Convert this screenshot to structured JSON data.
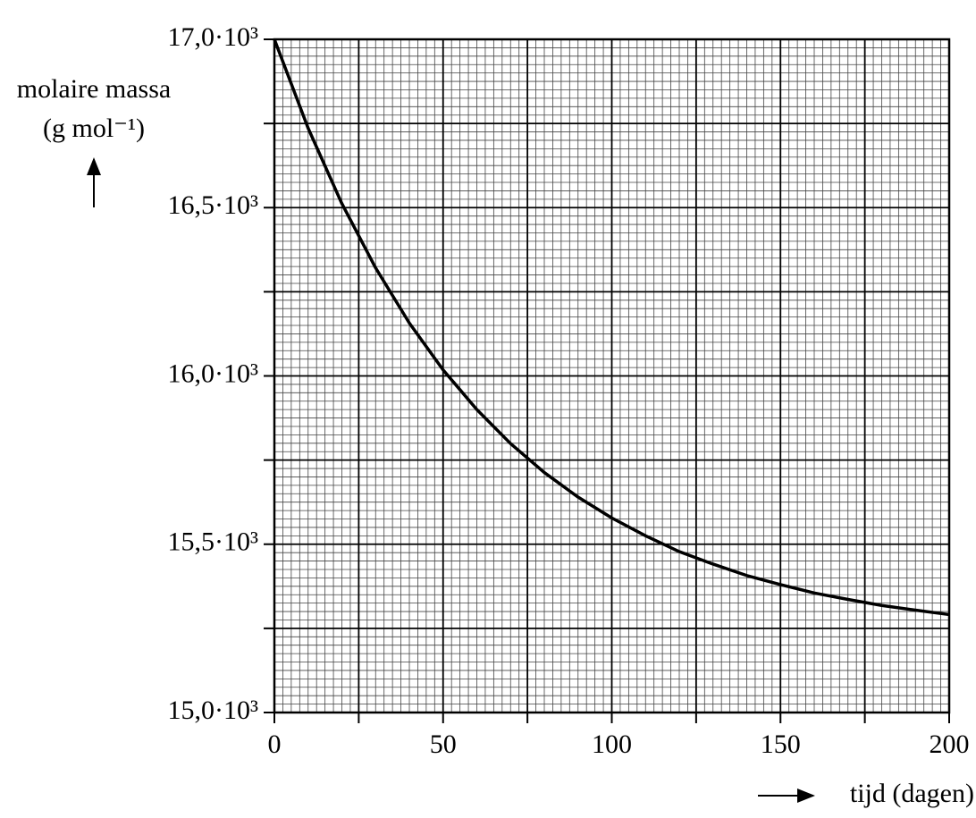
{
  "chart_data": {
    "type": "line",
    "y_label": "molaire massa",
    "y_unit": "(g mol⁻¹)",
    "x_label": "tijd (dagen)",
    "x": [
      0,
      10,
      20,
      30,
      40,
      50,
      60,
      70,
      80,
      90,
      100,
      110,
      120,
      130,
      140,
      150,
      160,
      170,
      180,
      190,
      200
    ],
    "values": [
      17000,
      16736,
      16512,
      16321,
      16157,
      16018,
      15900,
      15799,
      15713,
      15640,
      15578,
      15525,
      15478,
      15441,
      15407,
      15380,
      15355,
      15336,
      15318,
      15304,
      15291
    ],
    "color": "#000000",
    "xlim": [
      0,
      200
    ],
    "xticks": [
      0,
      50,
      100,
      150,
      200
    ],
    "ylim": [
      15000,
      17000
    ],
    "yticks": [
      {
        "value": 15000,
        "label": "15,0·10³"
      },
      {
        "value": 15500,
        "label": "15,5·10³"
      },
      {
        "value": 16000,
        "label": "16,0·10³"
      },
      {
        "value": 16500,
        "label": "16,5·10³"
      },
      {
        "value": 17000,
        "label": "17,0·10³"
      }
    ],
    "grid": {
      "major_x": 25,
      "major_y": 250,
      "minor_x": 2.5,
      "minor_y": 25
    }
  }
}
